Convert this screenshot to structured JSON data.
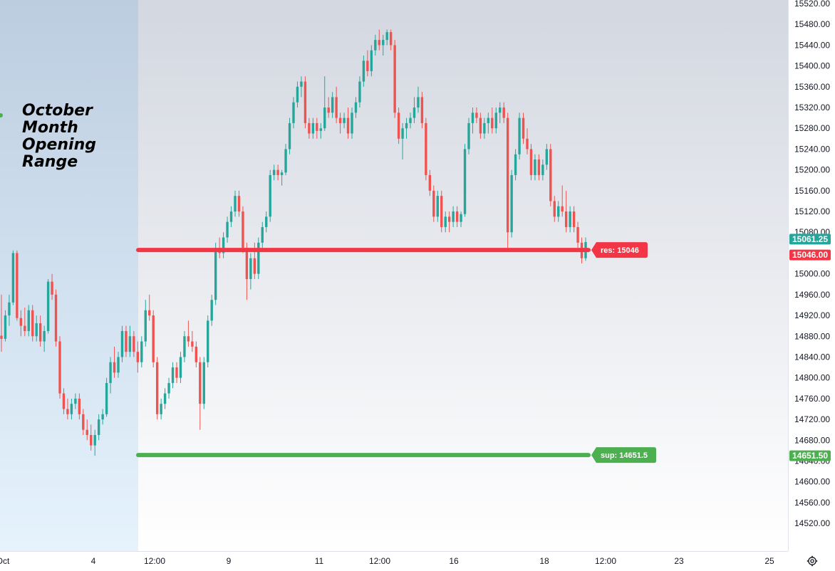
{
  "colors": {
    "up": "#26a69a",
    "down": "#ef5350",
    "resistance": "#f23645",
    "support": "#4caf50",
    "last_price": "#26a69a"
  },
  "annotation": {
    "lines": [
      "October",
      "Month",
      "Opening",
      "Range"
    ]
  },
  "chart_data": {
    "type": "candlestick",
    "y_axis": {
      "ylim": [
        14490,
        15520
      ],
      "ticks": [
        15520,
        15480,
        15440,
        15400,
        15360,
        15320,
        15280,
        15240,
        15200,
        15160,
        15120,
        15080,
        15000,
        14960,
        14920,
        14880,
        14840,
        14800,
        14760,
        14720,
        14680,
        14640,
        14600,
        14560,
        14520
      ],
      "tick_labels": [
        "15520.00",
        "15480.00",
        "15440.00",
        "15400.00",
        "15360.00",
        "15320.00",
        "15280.00",
        "15240.00",
        "15200.00",
        "15160.00",
        "15120.00",
        "15080.00",
        "15000.00",
        "14960.00",
        "14920.00",
        "14880.00",
        "14840.00",
        "14800.00",
        "14760.00",
        "14720.00",
        "14680.00",
        "14640.00",
        "14600.00",
        "14560.00",
        "14520.00"
      ],
      "position": "right"
    },
    "x_axis": {
      "labels": [
        "Oct",
        "4",
        "12:00",
        "9",
        "11",
        "12:00",
        "16",
        "18",
        "12:00",
        "23",
        "25"
      ]
    },
    "grid": false,
    "opening_range": {
      "label": "October Month Opening Range"
    },
    "resistance": {
      "label": "res: 15046",
      "value": 15046,
      "axis_label": "15046.00"
    },
    "support": {
      "label": "sup: 14651.5",
      "value": 14651.5,
      "axis_label": "14651.50"
    },
    "last_price": {
      "value": 15061.25,
      "axis_label": "15061.25"
    },
    "candles": [
      [
        14881,
        14960,
        14850,
        14875
      ],
      [
        14875,
        14930,
        14870,
        14920
      ],
      [
        14920,
        14960,
        14900,
        14945
      ],
      [
        14945,
        15045,
        14940,
        15040
      ],
      [
        15040,
        15045,
        14910,
        14915
      ],
      [
        14915,
        14930,
        14880,
        14900
      ],
      [
        14900,
        14935,
        14880,
        14890
      ],
      [
        14890,
        14940,
        14880,
        14930
      ],
      [
        14930,
        14940,
        14870,
        14880
      ],
      [
        14880,
        14920,
        14870,
        14905
      ],
      [
        14905,
        14920,
        14860,
        14870
      ],
      [
        14870,
        14900,
        14850,
        14890
      ],
      [
        14890,
        14990,
        14885,
        14985
      ],
      [
        14985,
        15000,
        14950,
        14960
      ],
      [
        14960,
        14970,
        14860,
        14870
      ],
      [
        14870,
        14880,
        14760,
        14770
      ],
      [
        14770,
        14780,
        14730,
        14740
      ],
      [
        14740,
        14760,
        14720,
        14730
      ],
      [
        14730,
        14760,
        14720,
        14750
      ],
      [
        14750,
        14770,
        14740,
        14760
      ],
      [
        14760,
        14770,
        14720,
        14730
      ],
      [
        14730,
        14740,
        14690,
        14700
      ],
      [
        14700,
        14720,
        14680,
        14690
      ],
      [
        14690,
        14710,
        14660,
        14670
      ],
      [
        14670,
        14700,
        14650,
        14690
      ],
      [
        14690,
        14730,
        14680,
        14720
      ],
      [
        14720,
        14740,
        14710,
        14730
      ],
      [
        14730,
        14800,
        14725,
        14790
      ],
      [
        14790,
        14840,
        14770,
        14830
      ],
      [
        14830,
        14860,
        14800,
        14810
      ],
      [
        14810,
        14850,
        14800,
        14840
      ],
      [
        14840,
        14900,
        14830,
        14890
      ],
      [
        14890,
        14900,
        14840,
        14850
      ],
      [
        14850,
        14900,
        14840,
        14880
      ],
      [
        14880,
        14890,
        14840,
        14850
      ],
      [
        14850,
        14870,
        14810,
        14830
      ],
      [
        14830,
        14880,
        14820,
        14870
      ],
      [
        14870,
        14950,
        14860,
        14930
      ],
      [
        14930,
        14960,
        14910,
        14920
      ],
      [
        14920,
        14930,
        14820,
        14830
      ],
      [
        14830,
        14840,
        14720,
        14730
      ],
      [
        14730,
        14760,
        14720,
        14750
      ],
      [
        14750,
        14780,
        14740,
        14770
      ],
      [
        14770,
        14800,
        14760,
        14790
      ],
      [
        14790,
        14830,
        14780,
        14820
      ],
      [
        14820,
        14830,
        14790,
        14800
      ],
      [
        14800,
        14850,
        14790,
        14840
      ],
      [
        14840,
        14890,
        14830,
        14880
      ],
      [
        14880,
        14910,
        14860,
        14870
      ],
      [
        14870,
        14890,
        14850,
        14860
      ],
      [
        14860,
        14870,
        14820,
        14830
      ],
      [
        14830,
        14840,
        14700,
        14750
      ],
      [
        14750,
        14840,
        14740,
        14830
      ],
      [
        14830,
        14920,
        14820,
        14910
      ],
      [
        14910,
        14960,
        14900,
        14950
      ],
      [
        14950,
        15060,
        14940,
        15050
      ],
      [
        15050,
        15070,
        15030,
        15040
      ],
      [
        15040,
        15080,
        15030,
        15070
      ],
      [
        15070,
        15110,
        15060,
        15100
      ],
      [
        15100,
        15130,
        15090,
        15120
      ],
      [
        15120,
        15160,
        15110,
        15150
      ],
      [
        15150,
        15160,
        15110,
        15120
      ],
      [
        15120,
        15130,
        15040,
        15050
      ],
      [
        15050,
        15060,
        14950,
        14990
      ],
      [
        14990,
        15040,
        14970,
        15030
      ],
      [
        15030,
        15060,
        14990,
        15000
      ],
      [
        15000,
        15070,
        14990,
        15060
      ],
      [
        15060,
        15100,
        15050,
        15090
      ],
      [
        15090,
        15120,
        15080,
        15110
      ],
      [
        15110,
        15200,
        15100,
        15190
      ],
      [
        15190,
        15210,
        15180,
        15200
      ],
      [
        15200,
        15210,
        15180,
        15190
      ],
      [
        15190,
        15200,
        15170,
        15195
      ],
      [
        15195,
        15250,
        15190,
        15240
      ],
      [
        15240,
        15300,
        15230,
        15290
      ],
      [
        15290,
        15340,
        15280,
        15330
      ],
      [
        15330,
        15370,
        15320,
        15360
      ],
      [
        15360,
        15380,
        15340,
        15370
      ],
      [
        15370,
        15380,
        15280,
        15290
      ],
      [
        15290,
        15300,
        15260,
        15270
      ],
      [
        15270,
        15300,
        15260,
        15290
      ],
      [
        15290,
        15300,
        15260,
        15275
      ],
      [
        15275,
        15290,
        15260,
        15280
      ],
      [
        15280,
        15380,
        15275,
        15320
      ],
      [
        15320,
        15340,
        15300,
        15310
      ],
      [
        15310,
        15350,
        15300,
        15340
      ],
      [
        15340,
        15360,
        15290,
        15300
      ],
      [
        15300,
        15310,
        15270,
        15290
      ],
      [
        15290,
        15310,
        15280,
        15300
      ],
      [
        15300,
        15320,
        15260,
        15270
      ],
      [
        15270,
        15320,
        15260,
        15310
      ],
      [
        15310,
        15340,
        15300,
        15330
      ],
      [
        15330,
        15380,
        15320,
        15370
      ],
      [
        15370,
        15420,
        15360,
        15410
      ],
      [
        15410,
        15430,
        15380,
        15390
      ],
      [
        15390,
        15440,
        15380,
        15430
      ],
      [
        15430,
        15460,
        15420,
        15450
      ],
      [
        15450,
        15470,
        15430,
        15440
      ],
      [
        15440,
        15460,
        15420,
        15450
      ],
      [
        15450,
        15470,
        15440,
        15465
      ],
      [
        15465,
        15470,
        15430,
        15440
      ],
      [
        15440,
        15450,
        15300,
        15310
      ],
      [
        15310,
        15320,
        15250,
        15260
      ],
      [
        15260,
        15290,
        15220,
        15280
      ],
      [
        15280,
        15300,
        15260,
        15290
      ],
      [
        15290,
        15310,
        15280,
        15300
      ],
      [
        15300,
        15340,
        15290,
        15320
      ],
      [
        15320,
        15360,
        15310,
        15340
      ],
      [
        15340,
        15350,
        15280,
        15290
      ],
      [
        15290,
        15300,
        15180,
        15190
      ],
      [
        15190,
        15200,
        15150,
        15160
      ],
      [
        15160,
        15170,
        15100,
        15110
      ],
      [
        15110,
        15160,
        15100,
        15150
      ],
      [
        15150,
        15160,
        15080,
        15090
      ],
      [
        15090,
        15120,
        15080,
        15110
      ],
      [
        15110,
        15120,
        15080,
        15100
      ],
      [
        15100,
        15130,
        15090,
        15120
      ],
      [
        15120,
        15130,
        15090,
        15100
      ],
      [
        15100,
        15120,
        15090,
        15115
      ],
      [
        15115,
        15250,
        15110,
        15240
      ],
      [
        15240,
        15300,
        15230,
        15290
      ],
      [
        15290,
        15320,
        15270,
        15310
      ],
      [
        15310,
        15320,
        15290,
        15300
      ],
      [
        15300,
        15310,
        15260,
        15270
      ],
      [
        15270,
        15300,
        15260,
        15290
      ],
      [
        15290,
        15310,
        15270,
        15300
      ],
      [
        15300,
        15320,
        15270,
        15280
      ],
      [
        15280,
        15320,
        15270,
        15310
      ],
      [
        15310,
        15330,
        15290,
        15320
      ],
      [
        15320,
        15330,
        15290,
        15300
      ],
      [
        15300,
        15310,
        15050,
        15080
      ],
      [
        15080,
        15200,
        15070,
        15190
      ],
      [
        15190,
        15240,
        15180,
        15230
      ],
      [
        15230,
        15310,
        15220,
        15300
      ],
      [
        15300,
        15310,
        15250,
        15260
      ],
      [
        15260,
        15280,
        15230,
        15240
      ],
      [
        15240,
        15250,
        15180,
        15190
      ],
      [
        15190,
        15230,
        15180,
        15220
      ],
      [
        15220,
        15230,
        15180,
        15190
      ],
      [
        15190,
        15220,
        15180,
        15210
      ],
      [
        15210,
        15250,
        15200,
        15240
      ],
      [
        15240,
        15250,
        15130,
        15140
      ],
      [
        15140,
        15150,
        15100,
        15110
      ],
      [
        15110,
        15140,
        15100,
        15130
      ],
      [
        15130,
        15170,
        15110,
        15120
      ],
      [
        15120,
        15160,
        15080,
        15090
      ],
      [
        15090,
        15130,
        15080,
        15120
      ],
      [
        15120,
        15130,
        15080,
        15090
      ],
      [
        15090,
        15100,
        15050,
        15060
      ],
      [
        15060,
        15070,
        15020,
        15030
      ],
      [
        15030,
        15070,
        15025,
        15061.25
      ]
    ]
  }
}
